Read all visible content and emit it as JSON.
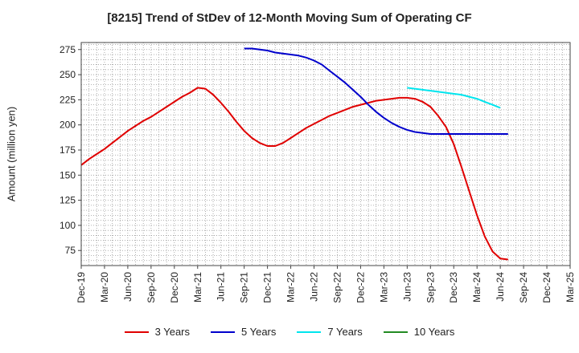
{
  "chart_data": {
    "type": "line",
    "title": "[8215]  Trend of StDev of 12-Month Moving Sum of Operating CF",
    "xlabel": "",
    "ylabel": "Amount (million yen)",
    "ylim": [
      60,
      282
    ],
    "yticks": [
      75,
      100,
      125,
      150,
      175,
      200,
      225,
      250,
      275
    ],
    "x_tick_labels": [
      "Dec-19",
      "Mar-20",
      "Jun-20",
      "Sep-20",
      "Dec-20",
      "Mar-21",
      "Jun-21",
      "Sep-21",
      "Dec-21",
      "Mar-22",
      "Jun-22",
      "Sep-22",
      "Dec-22",
      "Mar-23",
      "Jun-23",
      "Sep-23",
      "Dec-23",
      "Mar-24",
      "Jun-24",
      "Sep-24",
      "Dec-24",
      "Mar-25"
    ],
    "grid": true,
    "legend_position": "bottom",
    "series": [
      {
        "name": "3 Years",
        "color": "#e00000",
        "points": [
          [
            "Dec-19",
            160
          ],
          [
            "Jan-20",
            166
          ],
          [
            "Feb-20",
            171
          ],
          [
            "Mar-20",
            176
          ],
          [
            "Apr-20",
            182
          ],
          [
            "May-20",
            188
          ],
          [
            "Jun-20",
            194
          ],
          [
            "Jul-20",
            199
          ],
          [
            "Aug-20",
            204
          ],
          [
            "Sep-20",
            208
          ],
          [
            "Oct-20",
            213
          ],
          [
            "Nov-20",
            218
          ],
          [
            "Dec-20",
            223
          ],
          [
            "Jan-21",
            228
          ],
          [
            "Feb-21",
            232
          ],
          [
            "Mar-21",
            237
          ],
          [
            "Apr-21",
            236
          ],
          [
            "May-21",
            230
          ],
          [
            "Jun-21",
            222
          ],
          [
            "Jul-21",
            213
          ],
          [
            "Aug-21",
            203
          ],
          [
            "Sep-21",
            194
          ],
          [
            "Oct-21",
            187
          ],
          [
            "Nov-21",
            182
          ],
          [
            "Dec-21",
            179
          ],
          [
            "Jan-22",
            179
          ],
          [
            "Feb-22",
            182
          ],
          [
            "Mar-22",
            187
          ],
          [
            "Apr-22",
            192
          ],
          [
            "May-22",
            197
          ],
          [
            "Jun-22",
            201
          ],
          [
            "Jul-22",
            205
          ],
          [
            "Aug-22",
            209
          ],
          [
            "Sep-22",
            212
          ],
          [
            "Oct-22",
            215
          ],
          [
            "Nov-22",
            218
          ],
          [
            "Dec-22",
            220
          ],
          [
            "Jan-23",
            222
          ],
          [
            "Feb-23",
            224
          ],
          [
            "Mar-23",
            225
          ],
          [
            "Apr-23",
            226
          ],
          [
            "May-23",
            227
          ],
          [
            "Jun-23",
            227
          ],
          [
            "Jul-23",
            226
          ],
          [
            "Aug-23",
            223
          ],
          [
            "Sep-23",
            218
          ],
          [
            "Oct-23",
            209
          ],
          [
            "Nov-23",
            198
          ],
          [
            "Dec-23",
            181
          ],
          [
            "Jan-24",
            158
          ],
          [
            "Feb-24",
            134
          ],
          [
            "Mar-24",
            110
          ],
          [
            "Apr-24",
            89
          ],
          [
            "May-24",
            74
          ],
          [
            "Jun-24",
            67
          ],
          [
            "Jul-24",
            66
          ]
        ]
      },
      {
        "name": "5 Years",
        "color": "#0000cc",
        "points": [
          [
            "Sep-21",
            276
          ],
          [
            "Oct-21",
            276
          ],
          [
            "Nov-21",
            275
          ],
          [
            "Dec-21",
            274
          ],
          [
            "Jan-22",
            272
          ],
          [
            "Feb-22",
            271
          ],
          [
            "Mar-22",
            270
          ],
          [
            "Apr-22",
            269
          ],
          [
            "May-22",
            267
          ],
          [
            "Jun-22",
            264
          ],
          [
            "Jul-22",
            260
          ],
          [
            "Aug-22",
            254
          ],
          [
            "Sep-22",
            248
          ],
          [
            "Oct-22",
            242
          ],
          [
            "Nov-22",
            235
          ],
          [
            "Dec-22",
            228
          ],
          [
            "Jan-23",
            220
          ],
          [
            "Feb-23",
            213
          ],
          [
            "Mar-23",
            207
          ],
          [
            "Apr-23",
            202
          ],
          [
            "May-23",
            198
          ],
          [
            "Jun-23",
            195
          ],
          [
            "Jul-23",
            193
          ],
          [
            "Aug-23",
            192
          ],
          [
            "Sep-23",
            191
          ],
          [
            "Oct-23",
            191
          ],
          [
            "Nov-23",
            191
          ],
          [
            "Dec-23",
            191
          ],
          [
            "Jan-24",
            191
          ],
          [
            "Feb-24",
            191
          ],
          [
            "Mar-24",
            191
          ],
          [
            "Apr-24",
            191
          ],
          [
            "May-24",
            191
          ],
          [
            "Jun-24",
            191
          ],
          [
            "Jul-24",
            191
          ]
        ]
      },
      {
        "name": "7 Years",
        "color": "#00e5ee",
        "points": [
          [
            "Jun-23",
            237
          ],
          [
            "Jul-23",
            236
          ],
          [
            "Aug-23",
            235
          ],
          [
            "Sep-23",
            234
          ],
          [
            "Oct-23",
            233
          ],
          [
            "Nov-23",
            232
          ],
          [
            "Dec-23",
            231
          ],
          [
            "Jan-24",
            230
          ],
          [
            "Feb-24",
            228
          ],
          [
            "Mar-24",
            226
          ],
          [
            "Apr-24",
            223
          ],
          [
            "May-24",
            220
          ],
          [
            "Jun-24",
            217
          ]
        ]
      },
      {
        "name": "10 Years",
        "color": "#228b22",
        "points": []
      }
    ]
  }
}
